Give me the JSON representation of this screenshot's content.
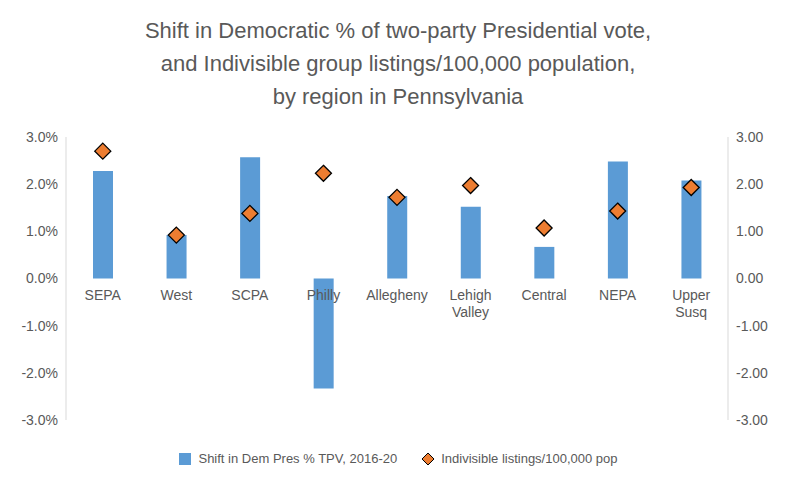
{
  "chart_data": {
    "type": "bar",
    "title": "Shift in Democratic % of two-party Presidential vote,\nand Indivisible group listings/100,000 population,\nby region in Pennsylvania",
    "categories": [
      "SEPA",
      "West",
      "SCPA",
      "Philly",
      "Allegheny",
      "Lehigh Valley",
      "Central",
      "NEPA",
      "Upper Susq"
    ],
    "series": [
      {
        "name": "Shift in Dem Pres % TPV, 2016-20",
        "type": "bar",
        "color": "#5B9BD5",
        "values": [
          2.28,
          0.92,
          2.57,
          -2.33,
          1.75,
          1.52,
          0.67,
          2.48,
          2.08
        ]
      },
      {
        "name": "Indivisible listings/100,000 pop",
        "type": "scatter",
        "marker": "diamond",
        "color": "#ED7D31",
        "axis": "y2",
        "values": [
          2.7,
          0.92,
          1.38,
          2.23,
          1.72,
          1.97,
          1.07,
          1.43,
          1.93
        ]
      }
    ],
    "ylim": [
      -3,
      3
    ],
    "yticks": [
      {
        "value": -3,
        "label": "-3.0%"
      },
      {
        "value": -2,
        "label": "-2.0%"
      },
      {
        "value": -1,
        "label": "-1.0%"
      },
      {
        "value": 0,
        "label": "0.0%"
      },
      {
        "value": 1,
        "label": "1.0%"
      },
      {
        "value": 2,
        "label": "2.0%"
      },
      {
        "value": 3,
        "label": "3.0%"
      }
    ],
    "y2lim": [
      -3,
      3
    ],
    "y2ticks": [
      {
        "value": -3,
        "label": "-3.00"
      },
      {
        "value": -2,
        "label": "-2.00"
      },
      {
        "value": -1,
        "label": "-1.00"
      },
      {
        "value": 0,
        "label": "0.00"
      },
      {
        "value": 1,
        "label": "1.00"
      },
      {
        "value": 2,
        "label": "2.00"
      },
      {
        "value": 3,
        "label": "3.00"
      }
    ],
    "grid": false,
    "legend": "bottom"
  }
}
